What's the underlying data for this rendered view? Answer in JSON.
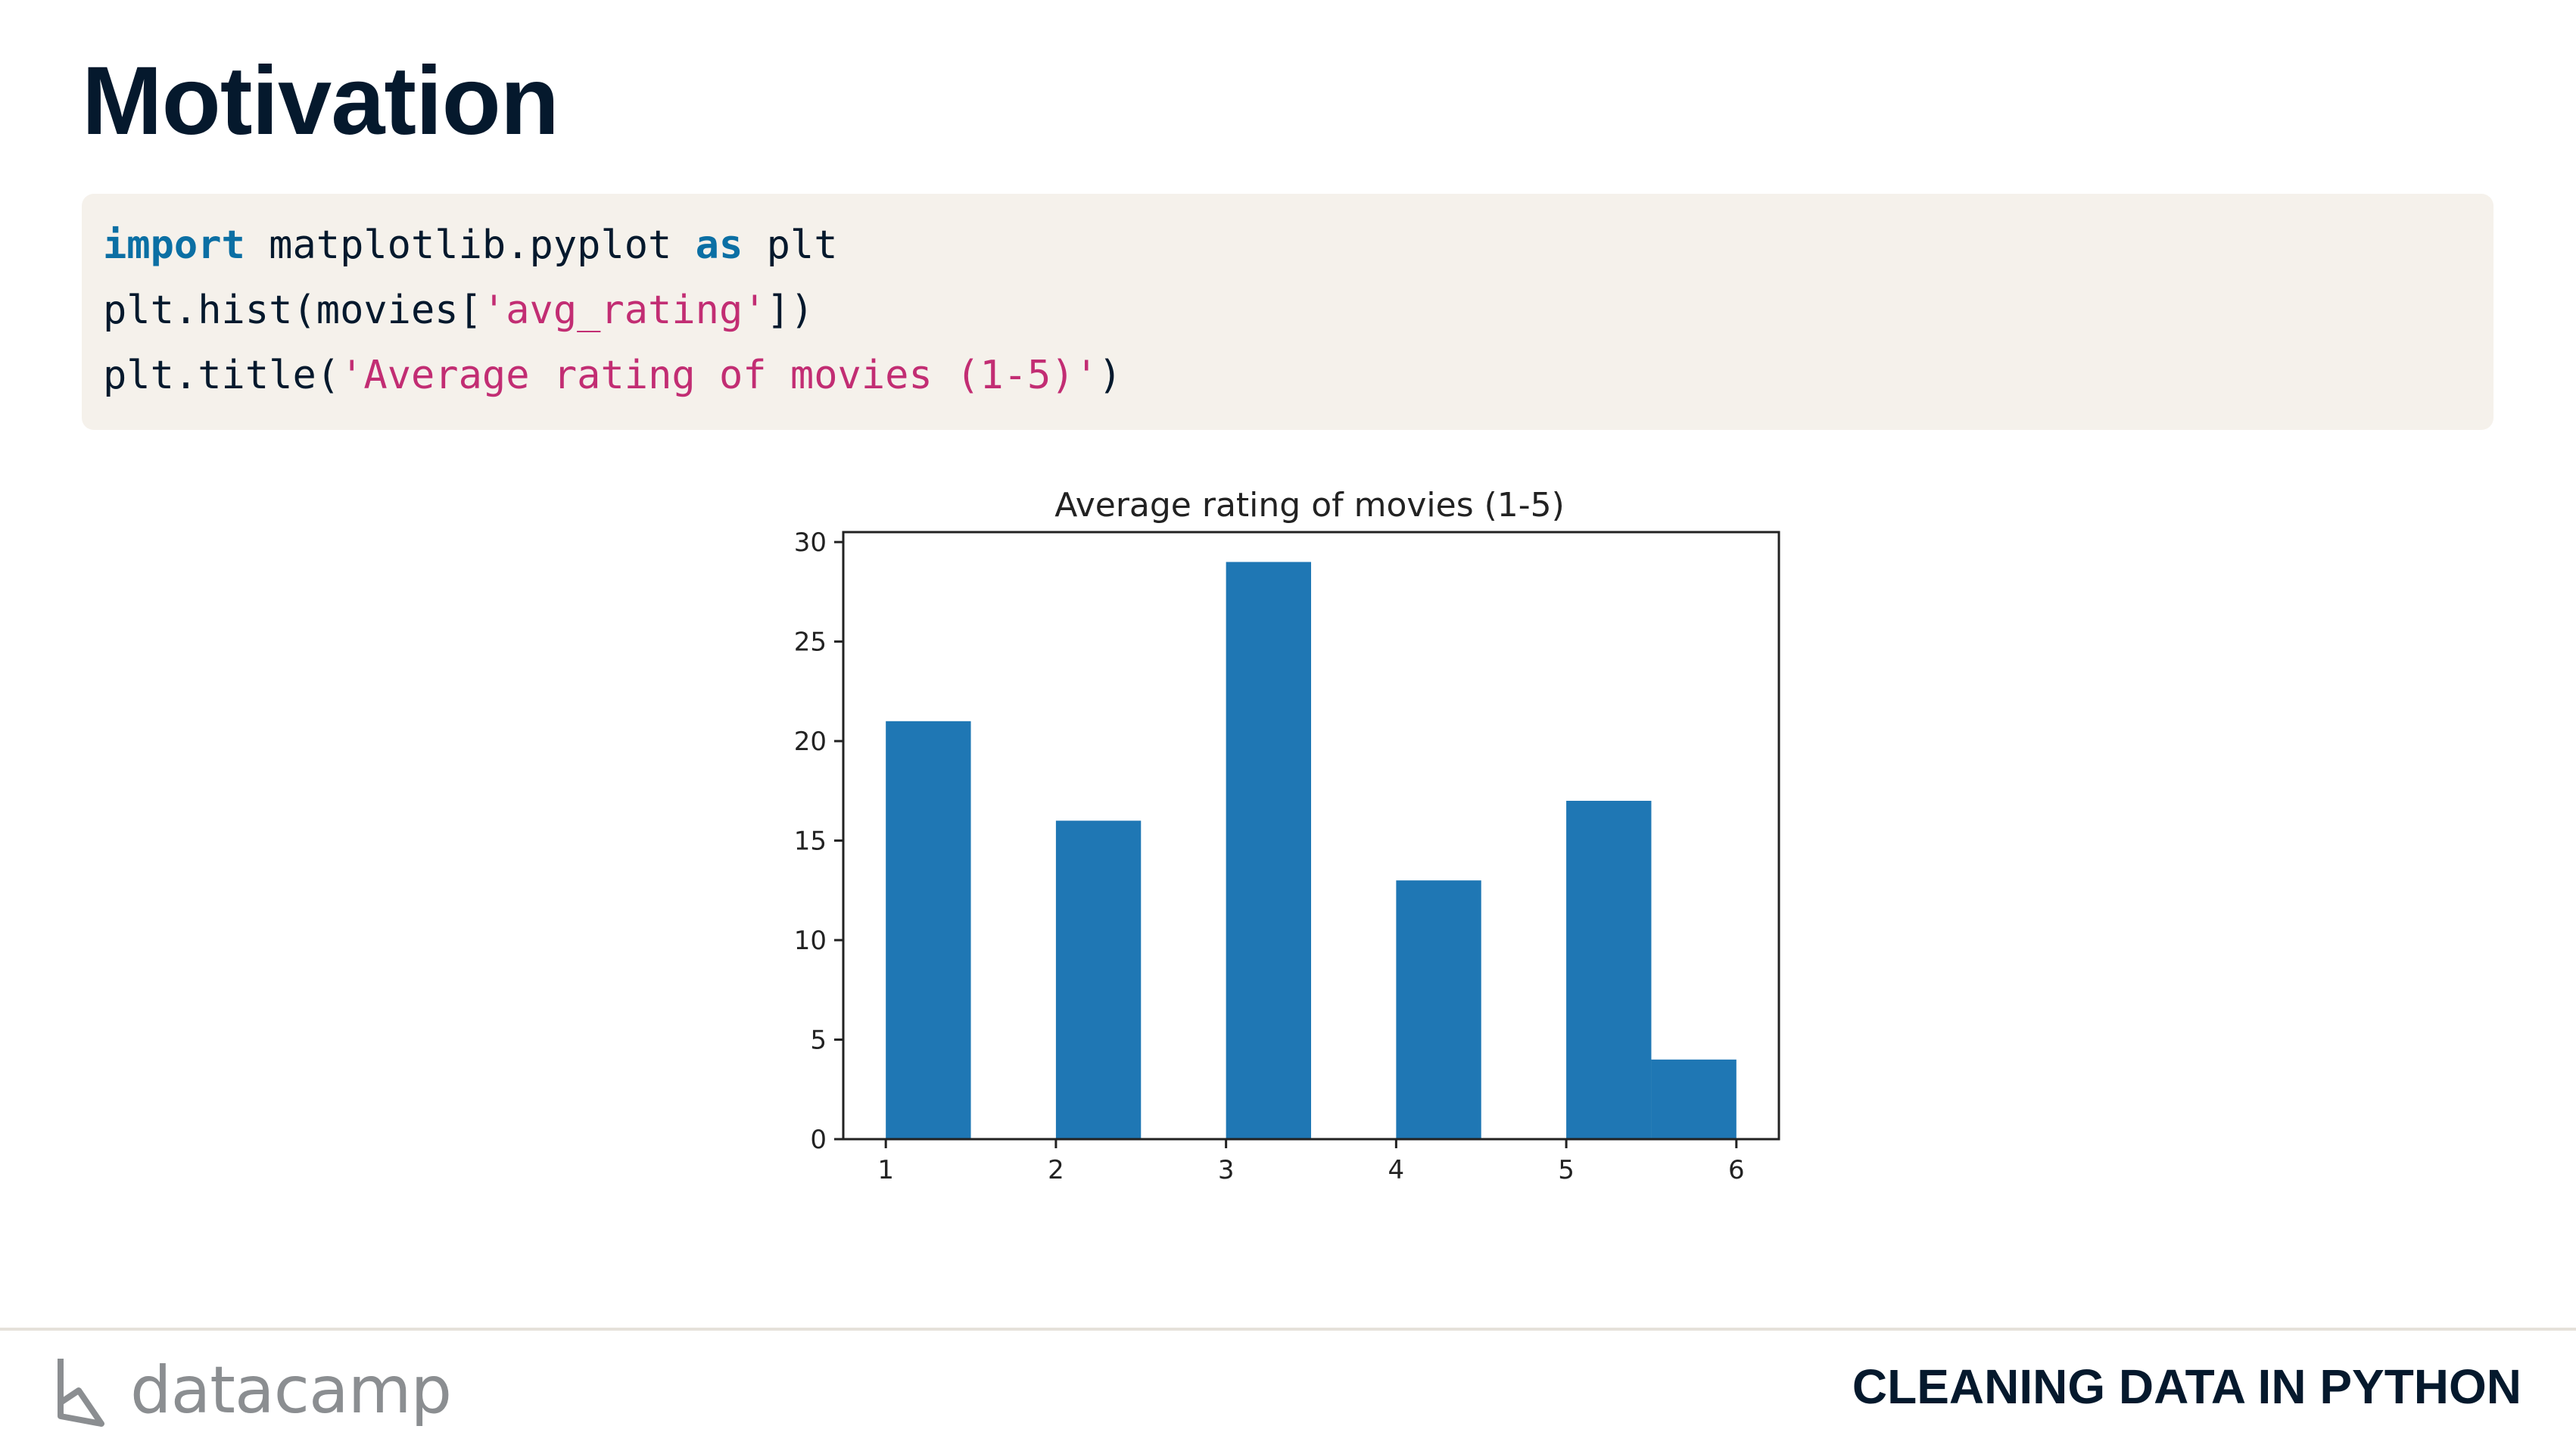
{
  "slide": {
    "title": "Motivation"
  },
  "code": {
    "line1": {
      "kw1": "import",
      "mid": " matplotlib.pyplot ",
      "kw2": "as",
      "end": " plt"
    },
    "line2": {
      "pre": "plt.hist(movies[",
      "str": "'avg_rating'",
      "post": "])"
    },
    "line3": {
      "pre": "plt.title(",
      "str": "'Average rating of movies (1-5)'",
      "post": ")"
    }
  },
  "chart_data": {
    "type": "bar",
    "title": "Average rating of movies (1-5)",
    "xlabel": "",
    "ylabel": "",
    "bars": [
      {
        "x0": 1.0,
        "x1": 1.5,
        "value": 21
      },
      {
        "x0": 2.0,
        "x1": 2.5,
        "value": 16
      },
      {
        "x0": 3.0,
        "x1": 3.5,
        "value": 29
      },
      {
        "x0": 4.0,
        "x1": 4.5,
        "value": 13
      },
      {
        "x0": 5.0,
        "x1": 5.5,
        "value": 17
      },
      {
        "x0": 5.5,
        "x1": 6.0,
        "value": 4
      }
    ],
    "xlim": [
      0.75,
      6.25
    ],
    "ylim": [
      0,
      30.5
    ],
    "xticks": [
      1,
      2,
      3,
      4,
      5,
      6
    ],
    "yticks": [
      0,
      5,
      10,
      15,
      20,
      25,
      30
    ],
    "bar_color": "#1f77b4",
    "grid": false
  },
  "footer": {
    "brand": "datacamp",
    "course": "CLEANING DATA IN PYTHON"
  },
  "colors": {
    "title": "#05192d",
    "code_bg": "#f5f1eb",
    "keyword": "#0b6fa4",
    "string": "#c22d73",
    "brand_gray": "#8b8e91"
  }
}
